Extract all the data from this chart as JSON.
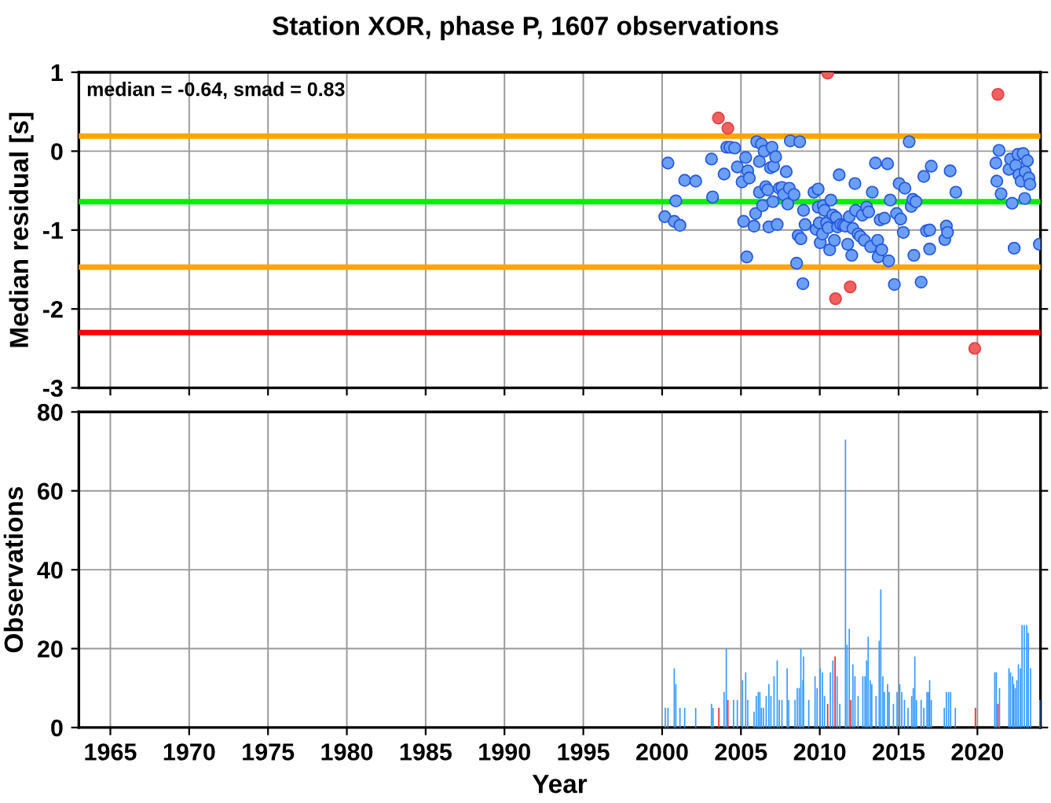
{
  "chart_data": [
    {
      "type": "scatter",
      "title": "Station XOR, phase P, 1607 observations",
      "ylabel": "Median residual [s]",
      "annotations": [
        "median = -0.64, smad = 0.83"
      ],
      "xlim": [
        1963,
        2024
      ],
      "xticks": [
        1965,
        1970,
        1975,
        1980,
        1985,
        1990,
        1995,
        2000,
        2005,
        2010,
        2015,
        2020
      ],
      "ylim": [
        -3,
        1
      ],
      "yticks": [
        -3,
        -2,
        -1,
        0,
        1
      ],
      "grid": true,
      "marker": "circle",
      "tick_labels": "y",
      "ref_lines": [
        {
          "axis": "y",
          "value": 0.19,
          "color": "#ffa500"
        },
        {
          "axis": "y",
          "value": -0.64,
          "color": "#00ee00"
        },
        {
          "axis": "y",
          "value": -1.47,
          "color": "#ffa500"
        },
        {
          "axis": "y",
          "value": -2.3,
          "color": "#ff0000"
        }
      ],
      "series": [
        {
          "color": "#6a9ff5",
          "x": [
            2000.37,
            2000.17,
            2000.87,
            2000.77,
            2001.13,
            2001.43,
            2002.13,
            2003.13,
            2003.2,
            2003.93,
            2004.1,
            2004.3,
            2004.6,
            2004.77,
            2005.07,
            2005.17,
            2005.3,
            2005.37,
            2005.43,
            2005.53,
            2005.83,
            2005.93,
            2006.0,
            2006.17,
            2006.3,
            2006.17,
            2006.37,
            2006.47,
            2006.57,
            2006.7,
            2006.77,
            2006.87,
            2006.97,
            2007.07,
            2007.03,
            2007.2,
            2007.3,
            2007.43,
            2007.6,
            2007.7,
            2007.87,
            2007.97,
            2008.07,
            2008.13,
            2008.37,
            2008.53,
            2008.63,
            2008.73,
            2008.8,
            2008.93,
            2008.97,
            2009.07,
            2009.63,
            2009.77,
            2009.9,
            2009.9,
            2009.97,
            2010.03,
            2010.17,
            2010.23,
            2010.3,
            2010.43,
            2010.53,
            2010.63,
            2010.7,
            2010.83,
            2010.93,
            2011.03,
            2011.13,
            2011.23,
            2011.33,
            2011.5,
            2011.63,
            2011.77,
            2011.87,
            2012.03,
            2012.1,
            2012.23,
            2012.27,
            2012.43,
            2012.57,
            2012.7,
            2012.83,
            2012.97,
            2013.1,
            2013.23,
            2013.33,
            2013.53,
            2013.67,
            2013.7,
            2013.83,
            2013.93,
            2014.1,
            2014.3,
            2014.37,
            2014.47,
            2014.73,
            2014.87,
            2015.03,
            2015.13,
            2015.3,
            2015.4,
            2015.67,
            2015.8,
            2015.9,
            2015.97,
            2016.1,
            2016.43,
            2016.6,
            2016.77,
            2016.97,
            2016.97,
            2017.07,
            2017.93,
            2018.03,
            2018.1,
            2018.27,
            2018.63,
            2021.17,
            2021.23,
            2021.37,
            2021.5,
            2022.0,
            2022.1,
            2022.2,
            2022.33,
            2022.43,
            2022.57,
            2022.63,
            2022.77,
            2022.9,
            2023.03,
            2023.17,
            2023.27,
            2023.33,
            2023.0,
            2023.93
          ],
          "values": [
            -0.15,
            -0.83,
            -0.63,
            -0.89,
            -0.94,
            -0.37,
            -0.38,
            -0.1,
            -0.58,
            -0.29,
            0.05,
            0.05,
            0.04,
            -0.2,
            -0.39,
            -0.89,
            -0.08,
            -1.34,
            -0.25,
            -0.34,
            -0.95,
            -0.79,
            0.12,
            -0.13,
            0.09,
            -0.52,
            -0.69,
            0.0,
            -0.45,
            -0.49,
            -0.96,
            -0.21,
            0.05,
            -0.19,
            -0.64,
            -0.07,
            -0.93,
            -0.47,
            -0.46,
            -0.55,
            -0.26,
            -0.67,
            -0.47,
            0.13,
            -0.55,
            -1.42,
            -1.07,
            0.12,
            -1.11,
            -1.68,
            -0.75,
            -0.93,
            -0.52,
            -0.99,
            -0.48,
            -0.71,
            -0.91,
            -1.16,
            -1.05,
            -0.69,
            -0.75,
            -0.91,
            -0.97,
            -1.25,
            -0.62,
            -0.81,
            -1.13,
            -0.84,
            -0.96,
            -0.3,
            -0.93,
            -0.94,
            -0.95,
            -1.18,
            -0.83,
            -1.32,
            -0.98,
            -0.41,
            -0.75,
            -1.05,
            -1.08,
            -0.81,
            -1.13,
            -0.71,
            -0.77,
            -1.21,
            -0.52,
            -0.15,
            -1.13,
            -1.34,
            -0.87,
            -1.25,
            -0.85,
            -0.16,
            -1.39,
            -0.62,
            -1.69,
            -0.79,
            -0.41,
            -0.86,
            -1.03,
            -0.47,
            0.12,
            -0.7,
            -0.61,
            -1.32,
            -0.64,
            -1.66,
            -0.32,
            -1.01,
            -1.24,
            -1.0,
            -0.19,
            -1.12,
            -0.95,
            -1.03,
            -0.25,
            -0.52,
            -0.15,
            -0.38,
            0.01,
            -0.54,
            -0.23,
            -0.1,
            -0.66,
            -1.23,
            -0.18,
            -0.04,
            -0.3,
            -0.38,
            -0.03,
            -0.26,
            -0.12,
            -0.34,
            -0.42,
            -0.6,
            -1.18
          ]
        },
        {
          "color": "#f06060",
          "x": [
            2003.57,
            2004.17,
            2010.5,
            2011.0,
            2011.93,
            2021.3,
            2019.83
          ],
          "values": [
            0.42,
            0.29,
            0.99,
            -1.87,
            -1.72,
            0.72,
            -2.5
          ]
        }
      ]
    },
    {
      "type": "bar",
      "ylabel": "Observations",
      "xlabel": "Year",
      "xlim": [
        1963,
        2024
      ],
      "xticks": [
        1965,
        1970,
        1975,
        1980,
        1985,
        1990,
        1995,
        2000,
        2005,
        2010,
        2015,
        2020
      ],
      "ylim": [
        0,
        80
      ],
      "yticks": [
        0,
        20,
        40,
        60,
        80
      ],
      "grid": true,
      "x": [
        2000.2,
        2000.37,
        2000.77,
        2000.87,
        2001.13,
        2001.43,
        2002.13,
        2003.13,
        2003.23,
        2003.6,
        2003.93,
        2004.07,
        2004.17,
        2004.53,
        2004.77,
        2005.1,
        2005.3,
        2005.43,
        2005.83,
        2005.97,
        2006.1,
        2006.2,
        2006.3,
        2006.43,
        2006.6,
        2006.77,
        2006.9,
        2007.1,
        2007.3,
        2007.43,
        2007.6,
        2007.93,
        2008.03,
        2008.43,
        2008.57,
        2008.7,
        2008.8,
        2008.93,
        2008.97,
        2009.3,
        2009.7,
        2009.83,
        2010.03,
        2010.17,
        2010.3,
        2010.5,
        2010.67,
        2010.83,
        2010.97,
        2011.1,
        2011.27,
        2011.63,
        2011.73,
        2011.87,
        2011.97,
        2012.1,
        2012.23,
        2012.43,
        2012.73,
        2012.87,
        2012.97,
        2013.07,
        2013.2,
        2013.3,
        2013.57,
        2013.77,
        2013.87,
        2014.0,
        2014.1,
        2014.3,
        2014.4,
        2014.67,
        2014.9,
        2015.07,
        2015.2,
        2015.37,
        2015.6,
        2015.83,
        2015.93,
        2016.03,
        2016.13,
        2016.43,
        2016.6,
        2016.8,
        2016.9,
        2016.97,
        2017.07,
        2017.9,
        2018.03,
        2018.17,
        2018.3,
        2018.6,
        2019.87,
        2021.1,
        2021.2,
        2021.3,
        2021.4,
        2022.0,
        2022.1,
        2022.23,
        2022.3,
        2022.4,
        2022.5,
        2022.6,
        2022.73,
        2022.83,
        2022.97,
        2023.13,
        2023.23,
        2023.37,
        2023.97
      ],
      "values": [
        5,
        5,
        15,
        11,
        5,
        5,
        5,
        6,
        5,
        5,
        9,
        20,
        7,
        7,
        7,
        12,
        14,
        7,
        4,
        8,
        9,
        9,
        5,
        5,
        8,
        11,
        8,
        13,
        17,
        7,
        7,
        15,
        7,
        7,
        10,
        10,
        20,
        12,
        18,
        7,
        13,
        10,
        15,
        14,
        8,
        6,
        14,
        17,
        18,
        13,
        6,
        73,
        21,
        25,
        7,
        16,
        13,
        8,
        13,
        13,
        17,
        23,
        12,
        11,
        8,
        22,
        35,
        13,
        9,
        11,
        9,
        6,
        9,
        11,
        9,
        7,
        5,
        8,
        10,
        18,
        7,
        7,
        5,
        9,
        9,
        12,
        7,
        5,
        9,
        9,
        9,
        5,
        5,
        14,
        14,
        6,
        10,
        15,
        14,
        13,
        11,
        10,
        12,
        16,
        15,
        26,
        26,
        26,
        24,
        15,
        7
      ],
      "colors": [
        "#3399ff",
        "#3399ff",
        "#3399ff",
        "#3399ff",
        "#3399ff",
        "#3399ff",
        "#3399ff",
        "#3399ff",
        "#3399ff",
        "#ff2020",
        "#3399ff",
        "#3399ff",
        "#ff2020",
        "#3399ff",
        "#3399ff",
        "#3399ff",
        "#3399ff",
        "#3399ff",
        "#3399ff",
        "#3399ff",
        "#3399ff",
        "#3399ff",
        "#3399ff",
        "#3399ff",
        "#3399ff",
        "#3399ff",
        "#3399ff",
        "#3399ff",
        "#3399ff",
        "#3399ff",
        "#3399ff",
        "#3399ff",
        "#3399ff",
        "#3399ff",
        "#3399ff",
        "#3399ff",
        "#3399ff",
        "#3399ff",
        "#3399ff",
        "#3399ff",
        "#3399ff",
        "#3399ff",
        "#3399ff",
        "#3399ff",
        "#3399ff",
        "#ff2020",
        "#3399ff",
        "#3399ff",
        "#ff2020",
        "#3399ff",
        "#3399ff",
        "#3399ff",
        "#3399ff",
        "#3399ff",
        "#ff2020",
        "#3399ff",
        "#3399ff",
        "#3399ff",
        "#3399ff",
        "#3399ff",
        "#3399ff",
        "#3399ff",
        "#3399ff",
        "#3399ff",
        "#3399ff",
        "#3399ff",
        "#3399ff",
        "#3399ff",
        "#3399ff",
        "#3399ff",
        "#3399ff",
        "#3399ff",
        "#3399ff",
        "#3399ff",
        "#3399ff",
        "#3399ff",
        "#3399ff",
        "#3399ff",
        "#3399ff",
        "#3399ff",
        "#3399ff",
        "#3399ff",
        "#3399ff",
        "#3399ff",
        "#3399ff",
        "#3399ff",
        "#3399ff",
        "#3399ff",
        "#3399ff",
        "#3399ff",
        "#3399ff",
        "#3399ff",
        "#ff2020",
        "#3399ff",
        "#3399ff",
        "#ff2020",
        "#3399ff",
        "#3399ff",
        "#3399ff",
        "#3399ff",
        "#3399ff",
        "#3399ff",
        "#3399ff",
        "#3399ff",
        "#3399ff",
        "#3399ff",
        "#3399ff",
        "#3399ff",
        "#3399ff",
        "#3399ff",
        "#3399ff"
      ]
    }
  ]
}
